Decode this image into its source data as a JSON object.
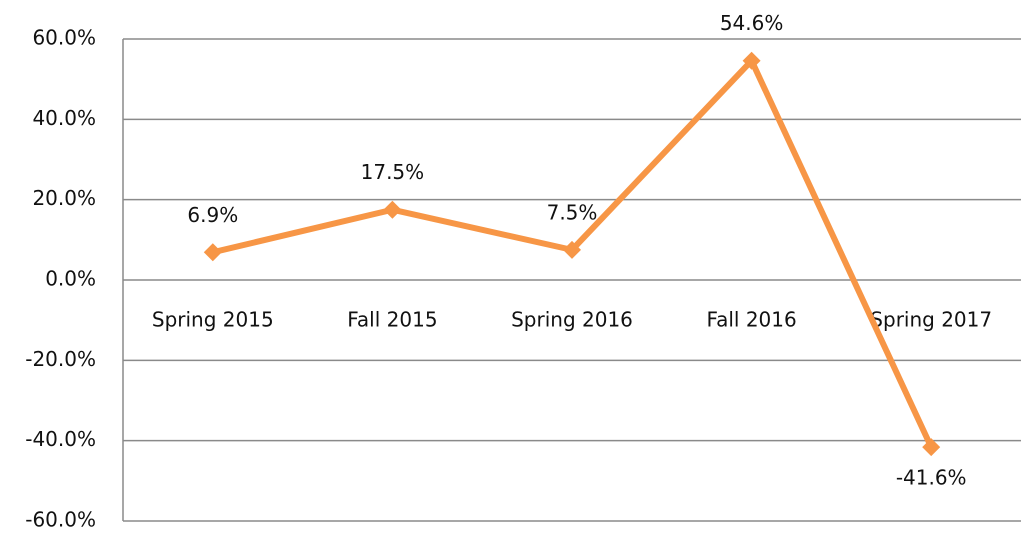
{
  "chart_data": {
    "type": "line",
    "categories": [
      "Spring 2015",
      "Fall 2015",
      "Spring 2016",
      "Fall 2016",
      "Spring 2017"
    ],
    "series": [
      {
        "color": "#f79646",
        "values": [
          6.9,
          17.5,
          7.5,
          54.6,
          -41.6
        ],
        "value_labels": [
          "6.9%",
          "17.5%",
          "7.5%",
          "54.6%",
          "-41.6%"
        ]
      }
    ],
    "ylim": [
      -60,
      60
    ],
    "yticks": [
      {
        "value": -60,
        "label": "-60.0%"
      },
      {
        "value": -40,
        "label": "-40.0%"
      },
      {
        "value": -20,
        "label": "-20.0%"
      },
      {
        "value": 0,
        "label": "0.0%"
      },
      {
        "value": 20,
        "label": "20.0%"
      },
      {
        "value": 40,
        "label": "40.0%"
      },
      {
        "value": 60,
        "label": "60.0%"
      }
    ],
    "grid": true
  }
}
